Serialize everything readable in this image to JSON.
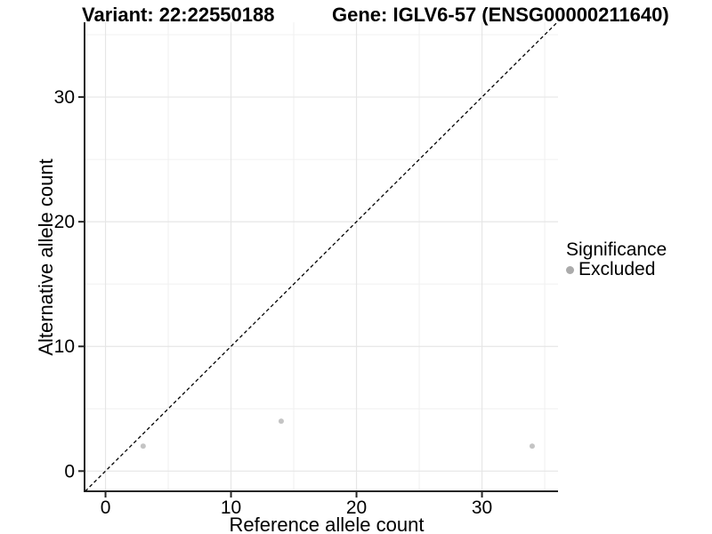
{
  "header": {
    "title_left": "Variant: 22:22550188",
    "title_right": "Gene: IGLV6-57 (ENSG00000211640)"
  },
  "chart_data": {
    "type": "scatter",
    "xlabel": "Reference allele count",
    "ylabel": "Alternative allele count",
    "xlim": [
      -1.67,
      36.06
    ],
    "ylim": [
      -1.62,
      36.0
    ],
    "x_ticks": [
      0,
      10,
      20,
      30
    ],
    "y_ticks": [
      0,
      10,
      20,
      30
    ],
    "x_minor_gridlines": [
      5,
      15,
      25,
      35
    ],
    "y_minor_gridlines": [
      5,
      15,
      25,
      35
    ],
    "grid": true,
    "legend_position": "right",
    "series": [
      {
        "name": "Excluded",
        "points": [
          {
            "x": 3,
            "y": 2
          },
          {
            "x": 14,
            "y": 4
          },
          {
            "x": 34,
            "y": 2
          }
        ]
      }
    ],
    "abline": {
      "slope": 1,
      "intercept": 0,
      "style": "dashed",
      "color": "#000000"
    },
    "point_color": "#c4c4c4",
    "colors": {
      "background": "#ffffff",
      "grid_major": "#e6e6e6",
      "grid_minor": "#f0f0f0",
      "axis": "#262626",
      "text": "#000000"
    }
  },
  "legend": {
    "title": "Significance",
    "items": [
      {
        "label": "Excluded",
        "color": "#ababab"
      }
    ]
  }
}
